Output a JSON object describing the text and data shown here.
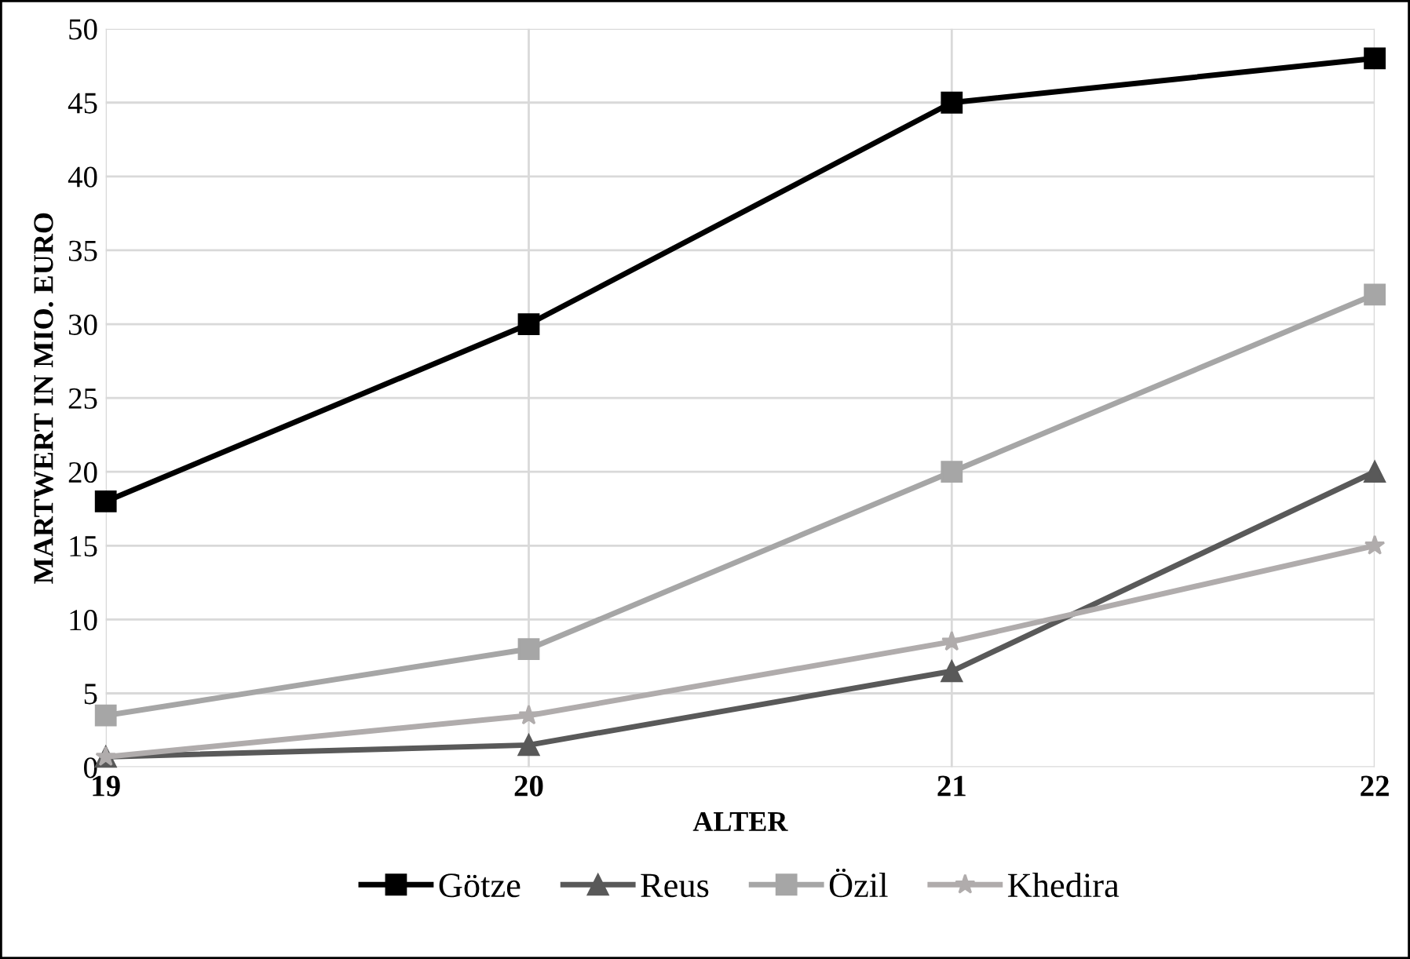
{
  "chart_data": {
    "type": "line",
    "xlabel": "ALTER",
    "ylabel": "MARTWERT IN MIO. EURO",
    "x": [
      19,
      20,
      21,
      22
    ],
    "xlim": [
      19,
      22
    ],
    "xticks": [
      19,
      20,
      21,
      22
    ],
    "ylim": [
      0,
      50
    ],
    "yticks": [
      0,
      5,
      10,
      15,
      20,
      25,
      30,
      35,
      40,
      45,
      50
    ],
    "grid": true,
    "legend": "bottom",
    "line_style": "solid",
    "series": [
      {
        "name": "Götze",
        "color": "#000000",
        "marker": "square",
        "values": [
          18,
          30,
          45,
          48
        ]
      },
      {
        "name": "Reus",
        "color": "#595959",
        "marker": "triangle",
        "values": [
          0.7,
          1.5,
          6.5,
          20
        ]
      },
      {
        "name": "Özil",
        "color": "#a6a6a6",
        "marker": "square",
        "values": [
          3.5,
          8,
          20,
          32
        ]
      },
      {
        "name": "Khedira",
        "color": "#b0acac",
        "marker": "star",
        "values": [
          0.7,
          3.5,
          8.5,
          15
        ]
      }
    ]
  }
}
